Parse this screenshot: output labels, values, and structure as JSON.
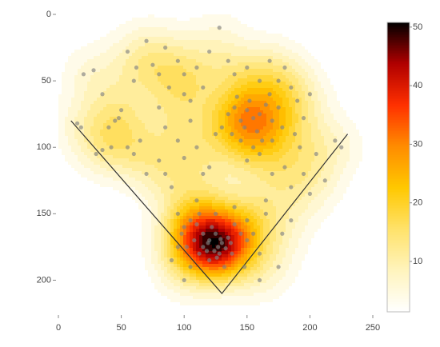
{
  "chart_data": {
    "type": "density",
    "points": {
      "x": [
        120,
        125,
        130,
        118,
        128,
        122,
        135,
        115,
        110,
        105,
        100,
        95,
        98,
        112,
        125,
        140,
        145,
        150,
        138,
        132,
        120,
        115,
        108,
        102,
        127,
        124,
        129,
        119,
        133,
        126,
        140,
        150,
        155,
        100,
        90,
        148,
        105,
        160,
        112,
        137,
        140,
        145,
        150,
        155,
        160,
        148,
        165,
        170,
        135,
        142,
        158,
        152,
        162,
        138,
        175,
        168,
        130,
        145,
        155,
        170,
        125,
        178,
        160,
        150,
        20,
        28,
        35,
        45,
        50,
        48,
        40,
        18,
        15,
        35,
        42,
        55,
        60,
        65,
        30,
        70,
        80,
        75,
        62,
        55,
        70,
        85,
        95,
        100,
        88,
        110,
        120,
        128,
        135,
        140,
        150,
        160,
        168,
        180,
        175,
        185,
        190,
        195,
        200,
        188,
        192,
        205,
        225,
        220,
        180,
        170,
        185,
        200,
        195,
        185,
        178,
        165,
        90,
        85,
        100,
        95,
        110,
        115,
        105,
        85,
        80,
        100,
        105,
        115,
        60,
        212,
        175,
        160,
        110,
        95,
        80,
        120,
        165
      ],
      "y": [
        170,
        165,
        172,
        178,
        180,
        160,
        168,
        165,
        158,
        155,
        160,
        150,
        165,
        150,
        150,
        158,
        165,
        170,
        180,
        190,
        185,
        175,
        170,
        175,
        175,
        178,
        169,
        172,
        176,
        183,
        145,
        155,
        165,
        200,
        185,
        190,
        190,
        180,
        180,
        172,
        70,
        80,
        72,
        78,
        75,
        85,
        68,
        80,
        75,
        62,
        88,
        65,
        95,
        90,
        70,
        60,
        85,
        95,
        100,
        95,
        90,
        85,
        105,
        110,
        45,
        42,
        60,
        80,
        72,
        78,
        85,
        85,
        82,
        102,
        100,
        100,
        105,
        95,
        105,
        120,
        45,
        38,
        40,
        28,
        20,
        25,
        35,
        45,
        55,
        40,
        28,
        10,
        35,
        45,
        40,
        50,
        35,
        40,
        50,
        55,
        65,
        78,
        60,
        90,
        100,
        105,
        100,
        95,
        115,
        120,
        130,
        135,
        120,
        155,
        165,
        150,
        130,
        120,
        108,
        95,
        100,
        120,
        80,
        85,
        70,
        60,
        65,
        55,
        50,
        125,
        190,
        200,
        140,
        175,
        110,
        115,
        140
      ]
    },
    "foul_lines": {
      "x": [
        10,
        130,
        230
      ],
      "y": [
        80,
        210,
        90
      ]
    },
    "xlim": [
      0,
      250
    ],
    "xticks": [
      0,
      50,
      100,
      150,
      200,
      250
    ],
    "ylim": [
      0,
      225
    ],
    "yticks": [
      0,
      50,
      100,
      150,
      200
    ],
    "zlim": [
      1.4,
      50.8
    ],
    "zticks": [
      10,
      20,
      30,
      40,
      50
    ],
    "colorscale": [
      "#ffffff",
      "#fff4bd",
      "#ffe26a",
      "#ffc800",
      "#ff8c00",
      "#ff3000",
      "#b00000",
      "#000000"
    ],
    "point_color": "rgba(130,130,130,0.65)",
    "line_color": "#333333"
  }
}
